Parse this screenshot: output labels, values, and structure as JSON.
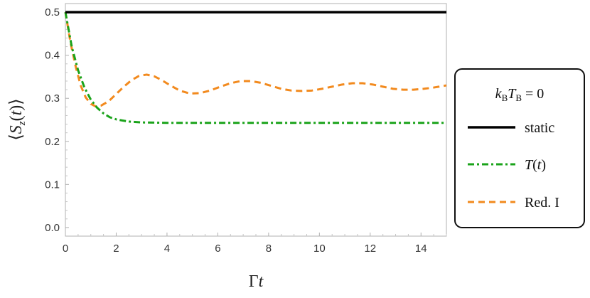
{
  "chart_data": {
    "type": "line",
    "title": "",
    "xlabel": "Γt",
    "ylabel": "⟨S_z(t)⟩",
    "xlim": [
      0,
      15
    ],
    "ylim": [
      -0.02,
      0.52
    ],
    "xticks": [
      0,
      2,
      4,
      6,
      8,
      10,
      12,
      14
    ],
    "yticks": [
      0.0,
      0.1,
      0.2,
      0.3,
      0.4,
      0.5
    ],
    "xtick_labels": [
      "0",
      "2",
      "4",
      "6",
      "8",
      "10",
      "12",
      "14"
    ],
    "ytick_labels": [
      "0.0",
      "0.1",
      "0.2",
      "0.3",
      "0.4",
      "0.5"
    ],
    "grid": false,
    "legend": {
      "placement": "right",
      "title": "k_B T_B = 0"
    },
    "series": [
      {
        "name": "static",
        "color": "#000000",
        "dash": "solid",
        "x": [
          0,
          15
        ],
        "y": [
          0.5,
          0.5
        ]
      },
      {
        "name": "T(t)",
        "color": "#1aa31a",
        "dash": "dashdot",
        "x": [
          0,
          0.25,
          0.5,
          0.75,
          1.0,
          1.25,
          1.5,
          1.75,
          2.0,
          2.5,
          3.0,
          4.0,
          5.0,
          6.0,
          8.0,
          10.0,
          12.0,
          14.0,
          15.0
        ],
        "y": [
          0.5,
          0.42,
          0.365,
          0.325,
          0.297,
          0.278,
          0.265,
          0.256,
          0.251,
          0.246,
          0.244,
          0.243,
          0.243,
          0.243,
          0.243,
          0.243,
          0.243,
          0.243,
          0.243
        ]
      },
      {
        "name": "Red. I",
        "color": "#f28a1e",
        "dash": "dashed",
        "x": [
          0,
          0.2,
          0.4,
          0.6,
          0.8,
          1.0,
          1.2,
          1.4,
          1.7,
          2.0,
          2.3,
          2.6,
          2.9,
          3.2,
          3.5,
          3.8,
          4.1,
          4.5,
          4.9,
          5.3,
          5.7,
          6.1,
          6.5,
          6.9,
          7.3,
          7.7,
          8.1,
          8.5,
          8.9,
          9.3,
          9.7,
          10.1,
          10.5,
          10.9,
          11.3,
          11.7,
          12.1,
          12.5,
          12.9,
          13.3,
          13.7,
          14.1,
          14.5,
          15.0
        ],
        "y": [
          0.5,
          0.43,
          0.375,
          0.33,
          0.302,
          0.287,
          0.281,
          0.283,
          0.293,
          0.31,
          0.327,
          0.342,
          0.352,
          0.355,
          0.351,
          0.342,
          0.331,
          0.318,
          0.311,
          0.312,
          0.318,
          0.327,
          0.335,
          0.34,
          0.34,
          0.336,
          0.329,
          0.322,
          0.318,
          0.317,
          0.318,
          0.322,
          0.327,
          0.332,
          0.335,
          0.335,
          0.332,
          0.327,
          0.322,
          0.32,
          0.32,
          0.322,
          0.325,
          0.33
        ]
      }
    ]
  }
}
